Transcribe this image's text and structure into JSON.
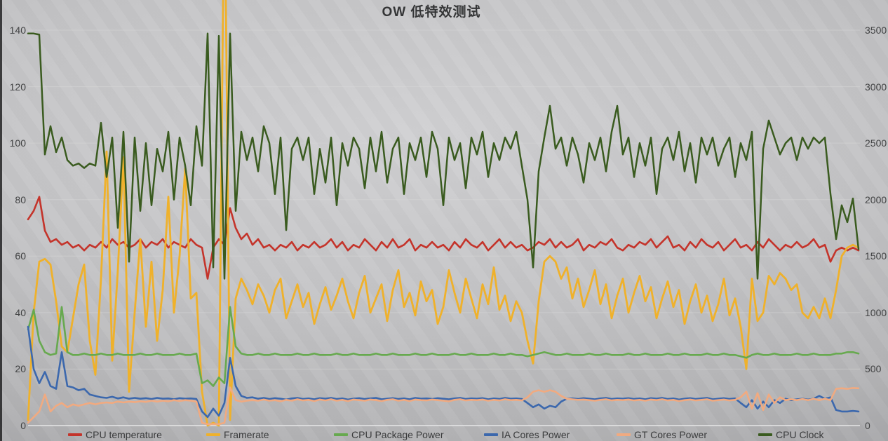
{
  "title": "OW 低特效测试",
  "axes": {
    "left_ticks": [
      "0",
      "20",
      "40",
      "60",
      "80",
      "100",
      "120",
      "140"
    ],
    "right_ticks": [
      "0",
      "500",
      "1000",
      "1500",
      "2000",
      "2500",
      "3000",
      "3500"
    ]
  },
  "legend": {
    "position": "bottom",
    "items": [
      {
        "label": "CPU temperature",
        "color": "#c4342b"
      },
      {
        "label": "Framerate",
        "color": "#efb12b"
      },
      {
        "label": "CPU Package Power",
        "color": "#67a94f"
      },
      {
        "label": "IA Cores Power",
        "color": "#3c68ad"
      },
      {
        "label": "GT Cores Power",
        "color": "#f1aa80"
      },
      {
        "label": "CPU Clock",
        "color": "#3a5b1f"
      }
    ]
  },
  "chart_data": {
    "type": "line",
    "title": "OW 低特效测试",
    "xlabel": "",
    "ylabel_left": "",
    "ylabel_right": "",
    "x_ticks_visible": false,
    "grid": true,
    "left_axis": {
      "min": 0,
      "max": 140,
      "step": 20
    },
    "right_axis": {
      "min": 0,
      "max": 3500,
      "step": 500
    },
    "note": "x is time samples; Framerate spike at sample 35 is clipped off-chart (estimated 200)",
    "series": [
      {
        "name": "CPU temperature",
        "axis": "left",
        "color": "#c4342b",
        "width": 2.6,
        "values": [
          73,
          76,
          81,
          69,
          65,
          66,
          64,
          65,
          63,
          64,
          62,
          64,
          63,
          65,
          63,
          66,
          64,
          65,
          63,
          64,
          66,
          63,
          65,
          64,
          66,
          63,
          65,
          64,
          63,
          66,
          64,
          63,
          52,
          63,
          66,
          64,
          77,
          70,
          66,
          68,
          64,
          66,
          63,
          64,
          62,
          64,
          63,
          65,
          62,
          64,
          63,
          65,
          63,
          64,
          66,
          63,
          65,
          62,
          64,
          63,
          66,
          64,
          62,
          65,
          63,
          66,
          63,
          64,
          66,
          62,
          64,
          63,
          65,
          63,
          64,
          62,
          65,
          63,
          66,
          64,
          63,
          65,
          62,
          64,
          66,
          63,
          65,
          63,
          64,
          62,
          63,
          65,
          64,
          66,
          63,
          65,
          63,
          64,
          66,
          62,
          64,
          63,
          65,
          64,
          66,
          63,
          62,
          64,
          63,
          65,
          64,
          66,
          63,
          65,
          67,
          63,
          64,
          62,
          65,
          63,
          66,
          64,
          63,
          65,
          62,
          64,
          66,
          63,
          64,
          62,
          65,
          63,
          66,
          64,
          62,
          64,
          63,
          65,
          63,
          64,
          66,
          63,
          64,
          58,
          62,
          63,
          62,
          63,
          62
        ]
      },
      {
        "name": "Framerate",
        "axis": "left",
        "color": "#efb12b",
        "width": 2.8,
        "values": [
          2,
          40,
          58,
          59,
          57,
          44,
          28,
          26,
          38,
          50,
          57,
          30,
          18,
          52,
          97,
          23,
          55,
          95,
          12,
          40,
          66,
          35,
          58,
          30,
          48,
          81,
          40,
          60,
          91,
          45,
          47,
          12,
          0,
          1,
          0,
          200,
          2,
          45,
          52,
          48,
          43,
          50,
          46,
          40,
          48,
          52,
          38,
          44,
          50,
          42,
          47,
          36,
          43,
          49,
          41,
          46,
          52,
          44,
          38,
          47,
          53,
          40,
          45,
          50,
          37,
          48,
          55,
          42,
          47,
          39,
          51,
          44,
          48,
          36,
          42,
          55,
          47,
          40,
          52,
          45,
          38,
          50,
          43,
          56,
          41,
          46,
          37,
          44,
          40,
          30,
          22,
          44,
          58,
          60,
          58,
          52,
          56,
          45,
          52,
          42,
          48,
          55,
          43,
          50,
          38,
          46,
          52,
          40,
          47,
          53,
          44,
          49,
          38,
          45,
          51,
          42,
          48,
          36,
          44,
          50,
          40,
          46,
          37,
          43,
          52,
          39,
          45,
          35,
          20,
          52,
          37,
          40,
          53,
          50,
          54,
          52,
          48,
          50,
          40,
          38,
          42,
          38,
          45,
          38,
          48,
          60,
          63,
          64,
          63
        ]
      },
      {
        "name": "CPU Package Power",
        "axis": "left",
        "color": "#67a94f",
        "width": 2.6,
        "values": [
          34,
          41,
          30,
          26,
          25,
          25.5,
          42,
          26,
          25,
          25,
          25.5,
          25,
          25,
          25.5,
          25,
          25,
          25.5,
          25,
          25,
          25,
          25.5,
          25,
          25,
          25.5,
          25,
          25,
          25,
          25.5,
          25,
          25,
          25.5,
          15,
          16,
          14,
          17,
          15,
          42,
          28,
          25.5,
          25,
          25,
          25.5,
          25,
          25,
          25.5,
          25,
          25,
          25,
          25.5,
          25,
          25,
          25.5,
          25,
          25,
          25,
          25.5,
          25,
          25,
          25.5,
          25,
          25,
          25,
          25.5,
          25,
          25,
          25.5,
          25,
          25,
          25,
          25.5,
          25,
          25,
          25.5,
          25,
          25,
          25,
          25.5,
          25,
          25,
          25.5,
          25,
          25,
          25,
          25.5,
          25,
          25,
          25.5,
          25,
          25,
          24.5,
          25,
          25.5,
          26,
          25.5,
          25,
          25,
          25.5,
          25,
          25,
          25,
          25.5,
          25,
          25,
          25.5,
          25,
          25,
          25,
          25.5,
          25,
          25,
          25.5,
          25,
          25,
          25,
          25.5,
          25,
          25,
          25.5,
          25,
          25,
          25,
          25.5,
          25,
          25,
          25.5,
          25,
          25,
          24.5,
          24,
          25,
          25.5,
          25,
          25,
          25.5,
          25,
          25,
          25,
          25.5,
          25,
          25,
          25.5,
          25,
          25,
          25,
          25.5,
          25.5,
          26,
          26,
          25.5
        ]
      },
      {
        "name": "IA Cores Power",
        "axis": "left",
        "color": "#3c68ad",
        "width": 2.6,
        "values": [
          35,
          20,
          15,
          19,
          14,
          13,
          26,
          14,
          13.5,
          12.5,
          13,
          11,
          10.5,
          10,
          9.8,
          10.2,
          9.6,
          10,
          9.5,
          9.8,
          9.5,
          9.7,
          9.4,
          9.8,
          9.5,
          9.6,
          9.3,
          9.7,
          9.5,
          9.6,
          9.4,
          5,
          3,
          6,
          3.5,
          8,
          24,
          14,
          10.5,
          9.8,
          10,
          9.5,
          9.8,
          9.4,
          9.7,
          9.5,
          9.2,
          9.6,
          9.8,
          9.4,
          9.6,
          9.3,
          9.7,
          9.5,
          9.8,
          9.4,
          9.6,
          9.2,
          9.5,
          9.7,
          9.4,
          9.6,
          9.8,
          9.3,
          9.5,
          9.7,
          9.4,
          9.6,
          9.3,
          9.8,
          9.5,
          9.6,
          9.4,
          9.7,
          9.5,
          9.3,
          9.6,
          9.8,
          9.4,
          9.6,
          9.5,
          9.7,
          9.3,
          9.6,
          9.4,
          9.8,
          9.5,
          9.6,
          9.4,
          8,
          6.5,
          7.5,
          6,
          7,
          6.5,
          8.5,
          9.5,
          9.6,
          9.4,
          9.7,
          9.5,
          9.3,
          9.6,
          9.8,
          9.4,
          9.6,
          9.5,
          9.7,
          9.4,
          9.6,
          9.3,
          9.7,
          9.5,
          9.8,
          9.4,
          9.6,
          9.2,
          9.5,
          9.7,
          9.4,
          9.6,
          9.8,
          9.3,
          9.5,
          9.7,
          9.4,
          9.6,
          8,
          6.5,
          9,
          6,
          8.5,
          6.5,
          9,
          8,
          9.5,
          9,
          9.3,
          9.5,
          9.2,
          9.5,
          10.5,
          9.5,
          10,
          5.5,
          5,
          5,
          5.2,
          5
        ]
      },
      {
        "name": "GT Cores Power",
        "axis": "left",
        "color": "#f1aa80",
        "width": 2.6,
        "values": [
          1,
          3,
          5,
          11,
          5,
          7,
          8,
          6.5,
          7.5,
          7,
          7.5,
          8,
          7.5,
          8,
          8.2,
          8,
          8.5,
          8.2,
          8.5,
          8.3,
          8.6,
          8.4,
          8.8,
          8.5,
          8.8,
          8.6,
          9,
          8.7,
          9,
          8.8,
          8.5,
          1,
          0.5,
          0.5,
          0.5,
          1,
          13.5,
          9,
          8.5,
          8.8,
          9,
          8.8,
          9.2,
          8.8,
          9,
          8.6,
          9.1,
          8.8,
          9.3,
          8.9,
          9.1,
          8.7,
          9.2,
          8.9,
          9.3,
          8.8,
          9.1,
          8.7,
          9.2,
          9,
          8.8,
          9.2,
          9,
          8.7,
          9.1,
          9.3,
          8.8,
          9.1,
          8.7,
          9.2,
          9,
          8.9,
          9.2,
          9,
          8.8,
          8.6,
          9.1,
          9.3,
          8.9,
          9.1,
          9,
          9.2,
          8.8,
          9.1,
          8.9,
          9.3,
          9,
          9.1,
          8.9,
          10,
          12,
          12.5,
          12,
          12.5,
          12,
          10.5,
          9.5,
          9.3,
          9.1,
          9.2,
          9,
          8.8,
          9.1,
          9.3,
          8.9,
          9.1,
          9,
          9.2,
          8.9,
          9.1,
          8.8,
          9.2,
          9,
          9.3,
          8.9,
          9.1,
          8.7,
          9,
          9.2,
          8.9,
          9.1,
          9.3,
          8.8,
          9,
          9.2,
          8.9,
          9.1,
          10,
          12,
          6,
          11.5,
          5.5,
          11,
          8,
          10,
          9,
          9.3,
          9,
          9.4,
          9,
          9.5,
          9,
          9.5,
          9,
          13,
          13.2,
          13,
          13.3,
          13.2
        ]
      },
      {
        "name": "CPU Clock",
        "axis": "right",
        "color": "#3a5b1f",
        "width": 2.5,
        "values": [
          3470,
          3470,
          3460,
          2400,
          2650,
          2420,
          2550,
          2350,
          2300,
          2320,
          2280,
          2320,
          2300,
          2680,
          2200,
          2550,
          1750,
          2600,
          1450,
          2550,
          1900,
          2500,
          1950,
          2450,
          2250,
          2600,
          2000,
          2550,
          2300,
          1950,
          2650,
          2300,
          3470,
          1400,
          3450,
          1300,
          3470,
          1900,
          2600,
          2350,
          2550,
          2250,
          2650,
          2500,
          2050,
          2550,
          1730,
          2450,
          2550,
          2350,
          2550,
          2050,
          2450,
          2150,
          2550,
          1950,
          2500,
          2300,
          2550,
          2450,
          2100,
          2550,
          2250,
          2600,
          2150,
          2450,
          2550,
          2050,
          2500,
          2350,
          2550,
          2200,
          2600,
          2450,
          1950,
          2550,
          2350,
          2500,
          2100,
          2550,
          2400,
          2600,
          2200,
          2500,
          2350,
          2550,
          2450,
          2600,
          2300,
          2000,
          1400,
          2250,
          2550,
          2830,
          2450,
          2550,
          2300,
          2550,
          2400,
          2150,
          2500,
          2350,
          2550,
          2250,
          2600,
          2830,
          2400,
          2550,
          2200,
          2500,
          2300,
          2550,
          2050,
          2450,
          2550,
          2350,
          2600,
          2250,
          2500,
          2150,
          2550,
          2400,
          2550,
          2300,
          2450,
          2550,
          2200,
          2500,
          2350,
          2600,
          1300,
          2450,
          2700,
          2550,
          2400,
          2500,
          2550,
          2350,
          2550,
          2450,
          2550,
          2500,
          2550,
          2050,
          1650,
          1950,
          1800,
          2010,
          1560
        ]
      }
    ]
  }
}
